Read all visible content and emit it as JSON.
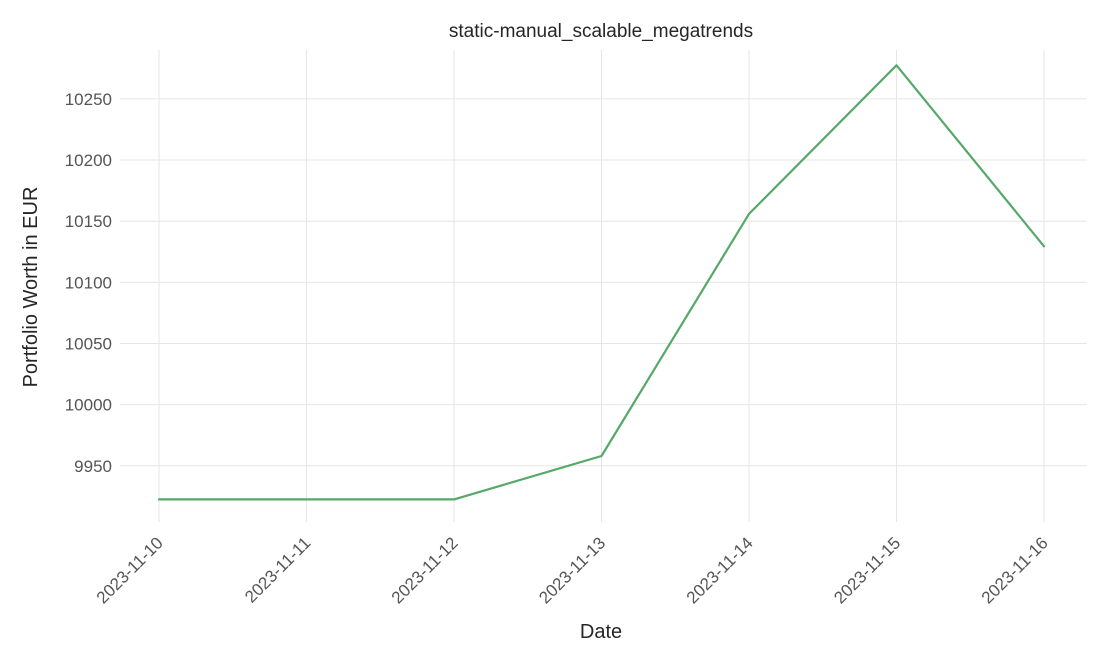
{
  "chart_data": {
    "type": "line",
    "title": "static-manual_scalable_megatrends",
    "xlabel": "Date",
    "ylabel": "Portfolio Worth in EUR",
    "x": [
      "2023-11-10",
      "2023-11-11",
      "2023-11-12",
      "2023-11-13",
      "2023-11-14",
      "2023-11-15",
      "2023-11-16"
    ],
    "series": [
      {
        "values": [
          9922.5,
          9922.5,
          9922.5,
          9958,
          10156,
          10277.5,
          10129.5
        ],
        "color": "#55a868"
      }
    ],
    "yticks": [
      9950,
      10000,
      10050,
      10100,
      10150,
      10200,
      10250
    ],
    "ylim": [
      9904,
      10290
    ],
    "grid": true,
    "legend": "none"
  }
}
